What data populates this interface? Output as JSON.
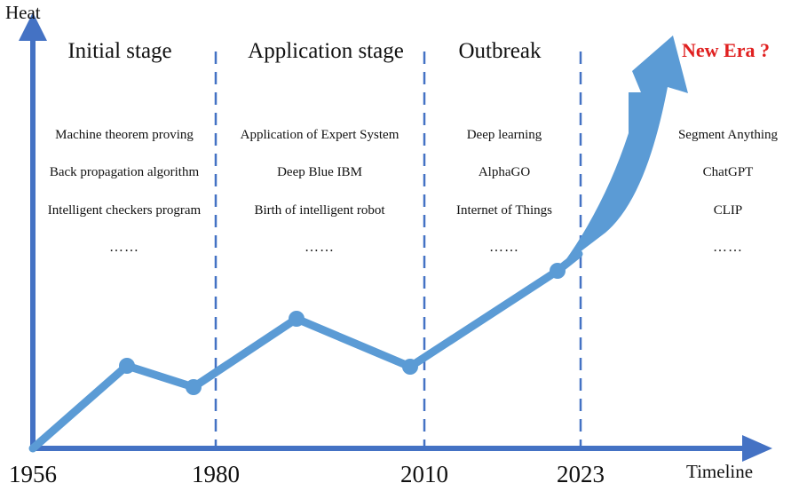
{
  "axes": {
    "y_label": "Heat",
    "x_label": "Timeline"
  },
  "years": [
    "1956",
    "1980",
    "2010",
    "2023"
  ],
  "stages": [
    {
      "title": "Initial stage",
      "events": [
        "Machine theorem proving",
        "Back propagation algorithm",
        "Intelligent checkers program"
      ],
      "more": "……"
    },
    {
      "title": "Application stage",
      "events": [
        "Application of Expert System",
        "Deep Blue IBM",
        "Birth of intelligent robot"
      ],
      "more": "……"
    },
    {
      "title": "Outbreak",
      "events": [
        "Deep learning",
        "AlphaGO",
        "Internet of Things"
      ],
      "more": "……"
    },
    {
      "title": "New Era ?",
      "events": [
        "Segment Anything",
        "ChatGPT",
        "CLIP"
      ],
      "more": "……"
    }
  ],
  "colors": {
    "line": "#5b9bd5",
    "axis": "#4472c4",
    "divider": "#4472c4",
    "new_era": "#e02020"
  }
}
